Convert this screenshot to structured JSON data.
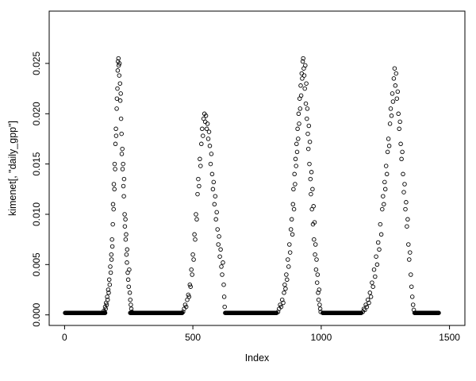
{
  "figure": {
    "background": "#ffffff",
    "foreground": "#000000"
  },
  "chart_data": {
    "type": "scatter",
    "title": "",
    "xlabel": "Index",
    "ylabel": "kimenet[, \"daily_gpp\"]",
    "xlim": [
      -60,
      1560
    ],
    "ylim": [
      -0.00105,
      0.0302
    ],
    "xticks": [
      0,
      500,
      1000,
      1500
    ],
    "xtick_labels": [
      "0",
      "500",
      "1000",
      "1500"
    ],
    "yticks": [
      0.0,
      0.005,
      0.01,
      0.015,
      0.02,
      0.025
    ],
    "ytick_labels": [
      "0.000",
      "0.005",
      "0.010",
      "0.015",
      "0.020",
      "0.025"
    ],
    "grid": false,
    "legend": null,
    "marker": {
      "shape": "circle-open",
      "radius": 2.3,
      "color": "#000000",
      "stroke_width": 0.9
    },
    "description": "R base-graphics scatter plot of daily GPP vs observation index: four seasonal bell-shaped peaks (maxima ~0.020-0.0255) separated by dense zero-valued dormant periods",
    "baseline_segments": [
      {
        "x_start": 2,
        "x_end": 158,
        "step": 2,
        "y": 0.0002
      },
      {
        "x_start": 256,
        "x_end": 458,
        "step": 2,
        "y": 0.0002
      },
      {
        "x_start": 626,
        "x_end": 826,
        "step": 2,
        "y": 0.0002
      },
      {
        "x_start": 1006,
        "x_end": 1156,
        "step": 2,
        "y": 0.0002
      },
      {
        "x_start": 1364,
        "x_end": 1458,
        "step": 2,
        "y": 0.0002
      }
    ],
    "points": [
      [
        150,
        0.0002
      ],
      [
        153,
        0.0004
      ],
      [
        156,
        0.0003
      ],
      [
        158,
        0.0008
      ],
      [
        160,
        0.0006
      ],
      [
        162,
        0.0012
      ],
      [
        164,
        0.001
      ],
      [
        166,
        0.0018
      ],
      [
        168,
        0.0015
      ],
      [
        170,
        0.0025
      ],
      [
        172,
        0.0022
      ],
      [
        174,
        0.0035
      ],
      [
        176,
        0.003
      ],
      [
        178,
        0.0048
      ],
      [
        180,
        0.0042
      ],
      [
        182,
        0.006
      ],
      [
        183,
        0.0055
      ],
      [
        185,
        0.0075
      ],
      [
        186,
        0.0068
      ],
      [
        188,
        0.009
      ],
      [
        189,
        0.011
      ],
      [
        191,
        0.0105
      ],
      [
        192,
        0.013
      ],
      [
        194,
        0.0125
      ],
      [
        195,
        0.015
      ],
      [
        197,
        0.0145
      ],
      [
        198,
        0.017
      ],
      [
        200,
        0.0185
      ],
      [
        201,
        0.0178
      ],
      [
        203,
        0.0205
      ],
      [
        204,
        0.0215
      ],
      [
        206,
        0.0225
      ],
      [
        207,
        0.0243
      ],
      [
        208,
        0.0252
      ],
      [
        210,
        0.0255
      ],
      [
        211,
        0.0248
      ],
      [
        213,
        0.0238
      ],
      [
        214,
        0.025
      ],
      [
        216,
        0.023
      ],
      [
        217,
        0.0213
      ],
      [
        219,
        0.022
      ],
      [
        220,
        0.0195
      ],
      [
        222,
        0.018
      ],
      [
        223,
        0.016
      ],
      [
        225,
        0.0165
      ],
      [
        226,
        0.0145
      ],
      [
        228,
        0.015
      ],
      [
        229,
        0.0128
      ],
      [
        231,
        0.0118
      ],
      [
        232,
        0.0135
      ],
      [
        234,
        0.01
      ],
      [
        235,
        0.0088
      ],
      [
        237,
        0.0095
      ],
      [
        238,
        0.0075
      ],
      [
        240,
        0.008
      ],
      [
        241,
        0.006
      ],
      [
        243,
        0.0052
      ],
      [
        244,
        0.0065
      ],
      [
        246,
        0.0042
      ],
      [
        248,
        0.0035
      ],
      [
        250,
        0.0028
      ],
      [
        252,
        0.0045
      ],
      [
        254,
        0.0022
      ],
      [
        256,
        0.0015
      ],
      [
        258,
        0.001
      ],
      [
        260,
        0.0006
      ],
      [
        262,
        0.0003
      ],
      [
        462,
        0.0003
      ],
      [
        466,
        0.0006
      ],
      [
        470,
        0.001
      ],
      [
        474,
        0.0008
      ],
      [
        478,
        0.0015
      ],
      [
        482,
        0.002
      ],
      [
        485,
        0.0018
      ],
      [
        488,
        0.003
      ],
      [
        491,
        0.0028
      ],
      [
        494,
        0.0045
      ],
      [
        497,
        0.004
      ],
      [
        500,
        0.006
      ],
      [
        503,
        0.0055
      ],
      [
        506,
        0.008
      ],
      [
        509,
        0.0075
      ],
      [
        512,
        0.01
      ],
      [
        515,
        0.0095
      ],
      [
        518,
        0.012
      ],
      [
        521,
        0.0135
      ],
      [
        524,
        0.0128
      ],
      [
        527,
        0.0155
      ],
      [
        530,
        0.0148
      ],
      [
        533,
        0.017
      ],
      [
        536,
        0.0185
      ],
      [
        539,
        0.0178
      ],
      [
        542,
        0.0195
      ],
      [
        545,
        0.02
      ],
      [
        548,
        0.0192
      ],
      [
        551,
        0.0198
      ],
      [
        554,
        0.0185
      ],
      [
        557,
        0.019
      ],
      [
        560,
        0.0175
      ],
      [
        563,
        0.0182
      ],
      [
        566,
        0.0168
      ],
      [
        569,
        0.015
      ],
      [
        572,
        0.016
      ],
      [
        575,
        0.014
      ],
      [
        578,
        0.0125
      ],
      [
        581,
        0.0132
      ],
      [
        584,
        0.011
      ],
      [
        587,
        0.0118
      ],
      [
        590,
        0.0095
      ],
      [
        593,
        0.0102
      ],
      [
        596,
        0.0085
      ],
      [
        599,
        0.007
      ],
      [
        602,
        0.0078
      ],
      [
        605,
        0.0058
      ],
      [
        608,
        0.0065
      ],
      [
        611,
        0.0048
      ],
      [
        614,
        0.004
      ],
      [
        617,
        0.0052
      ],
      [
        620,
        0.003
      ],
      [
        622,
        0.0018
      ],
      [
        624,
        0.0008
      ],
      [
        832,
        0.0003
      ],
      [
        836,
        0.0006
      ],
      [
        840,
        0.001
      ],
      [
        844,
        0.0008
      ],
      [
        848,
        0.0015
      ],
      [
        852,
        0.0012
      ],
      [
        855,
        0.0022
      ],
      [
        858,
        0.003
      ],
      [
        861,
        0.0026
      ],
      [
        864,
        0.004
      ],
      [
        867,
        0.0035
      ],
      [
        870,
        0.0055
      ],
      [
        873,
        0.0048
      ],
      [
        876,
        0.007
      ],
      [
        879,
        0.0062
      ],
      [
        882,
        0.0085
      ],
      [
        885,
        0.0095
      ],
      [
        888,
        0.008
      ],
      [
        890,
        0.011
      ],
      [
        892,
        0.0125
      ],
      [
        894,
        0.0105
      ],
      [
        896,
        0.014
      ],
      [
        898,
        0.013
      ],
      [
        900,
        0.0155
      ],
      [
        902,
        0.0148
      ],
      [
        904,
        0.017
      ],
      [
        906,
        0.0162
      ],
      [
        908,
        0.0185
      ],
      [
        910,
        0.0175
      ],
      [
        912,
        0.02
      ],
      [
        914,
        0.019
      ],
      [
        916,
        0.0215
      ],
      [
        918,
        0.0205
      ],
      [
        920,
        0.0228
      ],
      [
        922,
        0.0218
      ],
      [
        924,
        0.024
      ],
      [
        926,
        0.0235
      ],
      [
        928,
        0.0252
      ],
      [
        930,
        0.0255
      ],
      [
        932,
        0.0245
      ],
      [
        934,
        0.0238
      ],
      [
        936,
        0.0225
      ],
      [
        938,
        0.0248
      ],
      [
        940,
        0.021
      ],
      [
        942,
        0.023
      ],
      [
        944,
        0.0195
      ],
      [
        946,
        0.0205
      ],
      [
        948,
        0.018
      ],
      [
        950,
        0.0165
      ],
      [
        952,
        0.0188
      ],
      [
        954,
        0.015
      ],
      [
        956,
        0.0172
      ],
      [
        958,
        0.0135
      ],
      [
        960,
        0.012
      ],
      [
        962,
        0.0142
      ],
      [
        964,
        0.0105
      ],
      [
        966,
        0.0125
      ],
      [
        968,
        0.009
      ],
      [
        970,
        0.0108
      ],
      [
        972,
        0.0075
      ],
      [
        974,
        0.0092
      ],
      [
        976,
        0.006
      ],
      [
        978,
        0.007
      ],
      [
        980,
        0.0045
      ],
      [
        982,
        0.0055
      ],
      [
        984,
        0.0032
      ],
      [
        986,
        0.004
      ],
      [
        988,
        0.0022
      ],
      [
        990,
        0.0015
      ],
      [
        992,
        0.0025
      ],
      [
        994,
        0.001
      ],
      [
        996,
        0.0006
      ],
      [
        998,
        0.0003
      ],
      [
        1162,
        0.0003
      ],
      [
        1166,
        0.0006
      ],
      [
        1170,
        0.0005
      ],
      [
        1174,
        0.001
      ],
      [
        1178,
        0.0008
      ],
      [
        1182,
        0.0015
      ],
      [
        1186,
        0.0012
      ],
      [
        1190,
        0.0022
      ],
      [
        1194,
        0.0018
      ],
      [
        1198,
        0.0032
      ],
      [
        1202,
        0.0028
      ],
      [
        1206,
        0.0045
      ],
      [
        1210,
        0.0038
      ],
      [
        1214,
        0.0058
      ],
      [
        1218,
        0.005
      ],
      [
        1222,
        0.0072
      ],
      [
        1226,
        0.0065
      ],
      [
        1230,
        0.009
      ],
      [
        1234,
        0.008
      ],
      [
        1238,
        0.0105
      ],
      [
        1241,
        0.0118
      ],
      [
        1244,
        0.011
      ],
      [
        1247,
        0.0132
      ],
      [
        1250,
        0.0125
      ],
      [
        1253,
        0.0148
      ],
      [
        1256,
        0.014
      ],
      [
        1259,
        0.0162
      ],
      [
        1262,
        0.0175
      ],
      [
        1265,
        0.0168
      ],
      [
        1268,
        0.019
      ],
      [
        1271,
        0.0205
      ],
      [
        1274,
        0.0198
      ],
      [
        1277,
        0.022
      ],
      [
        1280,
        0.0212
      ],
      [
        1283,
        0.0235
      ],
      [
        1286,
        0.0245
      ],
      [
        1289,
        0.0228
      ],
      [
        1292,
        0.024
      ],
      [
        1295,
        0.0215
      ],
      [
        1298,
        0.0222
      ],
      [
        1301,
        0.02
      ],
      [
        1304,
        0.0185
      ],
      [
        1307,
        0.0192
      ],
      [
        1310,
        0.017
      ],
      [
        1313,
        0.0155
      ],
      [
        1316,
        0.0162
      ],
      [
        1319,
        0.014
      ],
      [
        1322,
        0.0122
      ],
      [
        1325,
        0.013
      ],
      [
        1328,
        0.0105
      ],
      [
        1331,
        0.0112
      ],
      [
        1334,
        0.0088
      ],
      [
        1337,
        0.0095
      ],
      [
        1340,
        0.007
      ],
      [
        1343,
        0.0055
      ],
      [
        1346,
        0.0062
      ],
      [
        1349,
        0.004
      ],
      [
        1352,
        0.0028
      ],
      [
        1355,
        0.0018
      ],
      [
        1358,
        0.001
      ],
      [
        1361,
        0.0005
      ]
    ]
  }
}
